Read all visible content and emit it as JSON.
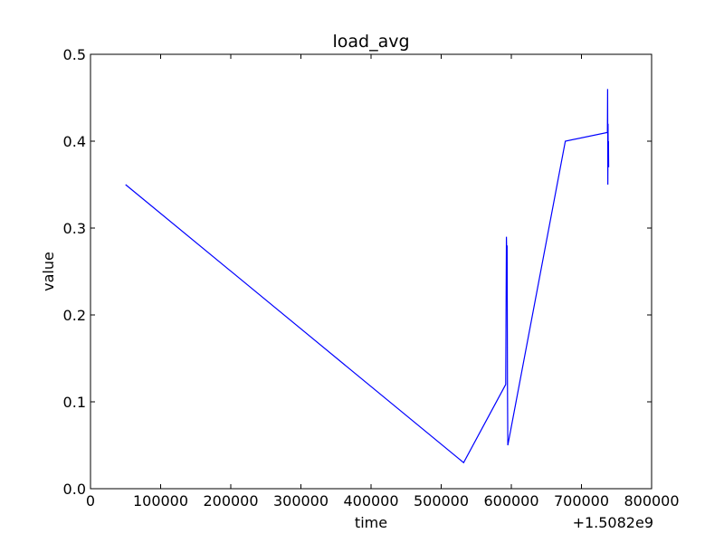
{
  "chart_data": {
    "type": "line",
    "title": "load_avg",
    "xlabel": "time",
    "ylabel": "value",
    "x_offset_label": "+1.5082e9",
    "xlim": [
      0,
      800000
    ],
    "ylim": [
      0.0,
      0.5
    ],
    "x_tick_labels": [
      "0",
      "100000",
      "200000",
      "300000",
      "400000",
      "500000",
      "600000",
      "700000",
      "800000"
    ],
    "y_tick_labels": [
      "0.0",
      "0.1",
      "0.2",
      "0.3",
      "0.4",
      "0.5"
    ],
    "grid": false,
    "legend": "none",
    "series": [
      {
        "color": "#0000ff",
        "x": [
          50000,
          532000,
          592000,
          593000,
          593500,
          594000,
          594500,
          595000,
          677000,
          737000,
          737300,
          737600,
          737900,
          738200,
          738500,
          738800
        ],
        "y": [
          0.35,
          0.03,
          0.12,
          0.29,
          0.27,
          0.28,
          0.12,
          0.05,
          0.4,
          0.41,
          0.46,
          0.35,
          0.42,
          0.38,
          0.4,
          0.37
        ]
      }
    ]
  }
}
